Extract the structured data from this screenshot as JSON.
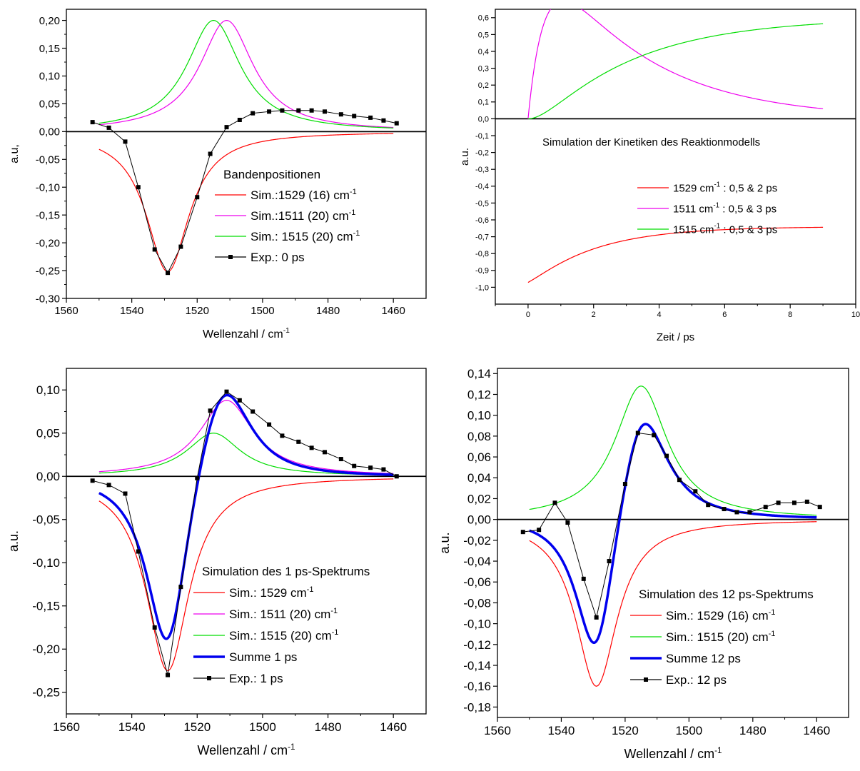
{
  "chart_data": [
    {
      "type": "line",
      "ylabel": "a.u,",
      "xlabel": "Wellenzahl / cm",
      "xlabel_sup": "-1",
      "xlim": [
        1560,
        1450
      ],
      "ylim": [
        -0.3,
        0.22
      ],
      "xticks": [
        "1560",
        "1540",
        "1520",
        "1500",
        "1480",
        "1460"
      ],
      "yticks": [
        "-0,30",
        "-0,25",
        "-0,20",
        "-0,15",
        "-0,10",
        "-0,05",
        "0,00",
        "0,05",
        "0,10",
        "0,15",
        "0,20"
      ],
      "legend_title": "Bandenpositionen",
      "legend_position": "bottom-right",
      "series": [
        {
          "name": "Sim.:1529 (16)  cm",
          "sup": "-1",
          "color": "#ff0000",
          "kind": "lorentz",
          "center": 1529,
          "fwhm": 16,
          "amp": -0.252,
          "xmin": 1460,
          "xmax": 1550
        },
        {
          "name": "Sim.:1511 (20)  cm",
          "sup": "-1",
          "color": "#ee00ee",
          "kind": "lorentz",
          "center": 1511,
          "fwhm": 20,
          "amp": 0.2,
          "xmin": 1460,
          "xmax": 1550
        },
        {
          "name": "Sim.: 1515 (20) cm",
          "sup": "-1",
          "color": "#00dd00",
          "kind": "lorentz",
          "center": 1515,
          "fwhm": 20,
          "amp": 0.2,
          "xmin": 1460,
          "xmax": 1550
        },
        {
          "name": "Exp.: 0 ps",
          "sup": "",
          "color": "#000000",
          "kind": "points",
          "x": [
            1552,
            1547,
            1542,
            1538,
            1533,
            1529,
            1525,
            1520,
            1516,
            1511,
            1507,
            1503,
            1498,
            1494,
            1489,
            1485,
            1481,
            1476,
            1472,
            1467,
            1463,
            1459
          ],
          "y": [
            0.017,
            0.007,
            -0.018,
            -0.1,
            -0.212,
            -0.254,
            -0.207,
            -0.118,
            -0.04,
            0.008,
            0.021,
            0.033,
            0.036,
            0.038,
            0.038,
            0.038,
            0.036,
            0.031,
            0.028,
            0.025,
            0.02,
            0.015
          ]
        }
      ]
    },
    {
      "type": "line",
      "ylabel": "a.u.",
      "xlabel": "Zeit / ps",
      "xlabel_sup": "",
      "xlim": [
        -1,
        10
      ],
      "ylim": [
        -1.1,
        0.65
      ],
      "xticks": [
        "0",
        "2",
        "4",
        "6",
        "8",
        "10"
      ],
      "yticks": [
        "-1,0",
        "-0,9",
        "-0,8",
        "-0,7",
        "-0,6",
        "-0,5",
        "-0,4",
        "-0,3",
        "-0,2",
        "-0,1",
        "0,0",
        "0,1",
        "0,2",
        "0,3",
        "0,4",
        "0,5",
        "0,6"
      ],
      "legend_title": "Simulation der Kinetiken des Reaktionmodells",
      "legend_position": "center-right",
      "series": [
        {
          "name": "1529 cm",
          "sup": "-1",
          "suffix": " : 0,5 & 2 ps",
          "color": "#ff0000",
          "kind": "kinetic",
          "curve": "A",
          "tau1": 0.5,
          "tau2": 2,
          "xmin": 0,
          "xmax": 9
        },
        {
          "name": "1511 cm",
          "sup": "-1",
          "suffix": " : 0,5 & 3 ps",
          "color": "#ee00ee",
          "kind": "kinetic",
          "curve": "B",
          "tau1": 0.5,
          "tau2": 3,
          "xmin": 0,
          "xmax": 9
        },
        {
          "name": "1515 cm",
          "sup": "-1",
          "suffix": " : 0,5 & 3 ps",
          "color": "#00dd00",
          "kind": "kinetic",
          "curve": "C",
          "tau1": 0.5,
          "tau2": 3,
          "xmin": 0,
          "xmax": 9
        }
      ]
    },
    {
      "type": "line",
      "ylabel": "a.u.",
      "xlabel": "Wellenzahl / cm",
      "xlabel_sup": "-1",
      "xlim": [
        1560,
        1450
      ],
      "ylim": [
        -0.275,
        0.125
      ],
      "xticks": [
        "1560",
        "1540",
        "1520",
        "1500",
        "1480",
        "1460"
      ],
      "yticks": [
        "-0,25",
        "-0,20",
        "-0,15",
        "-0,10",
        "-0,05",
        "0,00",
        "0,05",
        "0,10"
      ],
      "legend_title": "Simulation des 1 ps-Spektrums",
      "legend_position": "bottom-right",
      "series": [
        {
          "name": "Sim.: 1529 cm",
          "sup": "-1",
          "color": "#ff0000",
          "kind": "lorentz",
          "center": 1529,
          "fwhm": 16,
          "amp": -0.225,
          "xmin": 1460,
          "xmax": 1550
        },
        {
          "name": "Sim.: 1511 (20) cm",
          "sup": "-1",
          "color": "#ee00ee",
          "kind": "lorentz",
          "center": 1511,
          "fwhm": 20,
          "amp": 0.088,
          "xmin": 1460,
          "xmax": 1550
        },
        {
          "name": "Sim.: 1515 (20) cm",
          "sup": "-1",
          "color": "#00dd00",
          "kind": "lorentz",
          "center": 1515,
          "fwhm": 20,
          "amp": 0.05,
          "xmin": 1460,
          "xmax": 1550
        },
        {
          "name": "Summe 1 ps",
          "sup": "",
          "color": "#0000ee",
          "kind": "sum",
          "width": 3.5,
          "xmin": 1460,
          "xmax": 1550
        },
        {
          "name": "Exp.: 1 ps",
          "sup": "",
          "color": "#000000",
          "kind": "points",
          "x": [
            1552,
            1547,
            1542,
            1538,
            1533,
            1529,
            1525,
            1520,
            1516,
            1511,
            1507,
            1503,
            1498,
            1494,
            1489,
            1485,
            1481,
            1476,
            1472,
            1467,
            1463,
            1459
          ],
          "y": [
            -0.005,
            -0.01,
            -0.02,
            -0.087,
            -0.175,
            -0.23,
            -0.128,
            -0.002,
            0.076,
            0.098,
            0.088,
            0.075,
            0.06,
            0.047,
            0.04,
            0.033,
            0.028,
            0.02,
            0.012,
            0.01,
            0.008,
            0.0
          ]
        }
      ]
    },
    {
      "type": "line",
      "ylabel": "a.u.",
      "xlabel": "Wellenzahl / cm",
      "xlabel_sup": "-1",
      "xlim": [
        1560,
        1450
      ],
      "ylim": [
        -0.19,
        0.145
      ],
      "xticks": [
        "1560",
        "1540",
        "1520",
        "1500",
        "1480",
        "1460"
      ],
      "yticks": [
        "-0,18",
        "-0,16",
        "-0,14",
        "-0,12",
        "-0,10",
        "-0,08",
        "-0,06",
        "-0,04",
        "-0,02",
        "0,00",
        "0,02",
        "0,04",
        "0,06",
        "0,08",
        "0,10",
        "0,12",
        "0,14"
      ],
      "legend_title": "Simulation des 12 ps-Spektrums",
      "legend_position": "bottom-right",
      "series": [
        {
          "name": "Sim.: 1529 (16) cm",
          "sup": "-1",
          "color": "#ff0000",
          "kind": "lorentz",
          "center": 1529,
          "fwhm": 16,
          "amp": -0.16,
          "xmin": 1460,
          "xmax": 1550
        },
        {
          "name": "Sim.: 1515 (20) cm",
          "sup": "-1",
          "color": "#00dd00",
          "kind": "lorentz",
          "center": 1515,
          "fwhm": 20,
          "amp": 0.128,
          "xmin": 1460,
          "xmax": 1550
        },
        {
          "name": "Summe 12 ps",
          "sup": "",
          "color": "#0000ee",
          "kind": "sum",
          "width": 3.5,
          "xmin": 1460,
          "xmax": 1550
        },
        {
          "name": "Exp.: 12 ps",
          "sup": "",
          "color": "#000000",
          "kind": "points",
          "x": [
            1552,
            1547,
            1542,
            1538,
            1533,
            1529,
            1525,
            1520,
            1516,
            1511,
            1507,
            1503,
            1498,
            1494,
            1489,
            1485,
            1481,
            1476,
            1472,
            1467,
            1463,
            1459
          ],
          "y": [
            -0.012,
            -0.01,
            0.016,
            -0.003,
            -0.057,
            -0.094,
            -0.04,
            0.034,
            0.083,
            0.081,
            0.061,
            0.038,
            0.027,
            0.014,
            0.01,
            0.007,
            0.007,
            0.012,
            0.016,
            0.016,
            0.017,
            0.012
          ]
        }
      ]
    }
  ]
}
